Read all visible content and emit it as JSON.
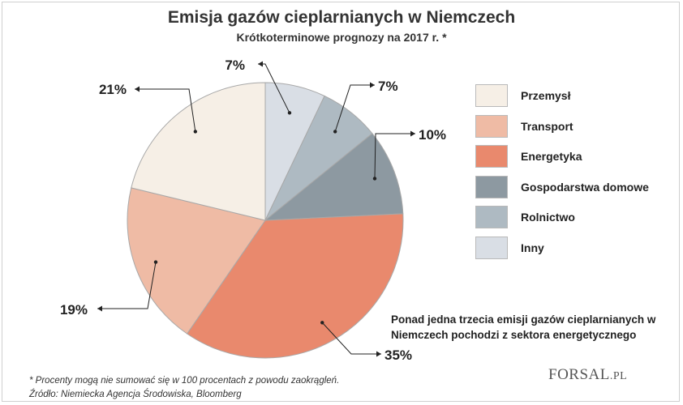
{
  "title": "Emisja gazów cieplarnianych w Niemczech",
  "subtitle": "Krótkoterminowe prognozy na 2017 r. *",
  "chart_data": {
    "type": "pie",
    "slices": [
      {
        "name": "Inny",
        "value": 7,
        "label": "7%",
        "color": "#d9dee5"
      },
      {
        "name": "Rolnictwo",
        "value": 7,
        "label": "7%",
        "color": "#aebac2"
      },
      {
        "name": "Gospodarstwa domowe",
        "value": 10,
        "label": "10%",
        "color": "#8d99a1"
      },
      {
        "name": "Energetyka",
        "value": 35,
        "label": "35%",
        "color": "#e9896d"
      },
      {
        "name": "Transport",
        "value": 19,
        "label": "19%",
        "color": "#efbba5"
      },
      {
        "name": "Przemysł",
        "value": 21,
        "label": "21%",
        "color": "#f6efe6"
      }
    ],
    "legend": [
      "Przemysł",
      "Transport",
      "Energetyka",
      "Gospodarstwa domowe",
      "Rolnictwo",
      "Inny"
    ],
    "legend_position": "right"
  },
  "note": "Ponad jedna trzecia emisji gazów cieplarnianych w Niemczech pochodzi z sektora energetycznego",
  "footnote_1": "* Procenty mogą nie sumować się w 100 procentach z powodu zaokrągleń.",
  "footnote_2": "Źródło: Niemiecka Agencja Środowiska, Bloomberg",
  "logo": {
    "main": "FORSAL",
    "suffix": ".PL"
  }
}
